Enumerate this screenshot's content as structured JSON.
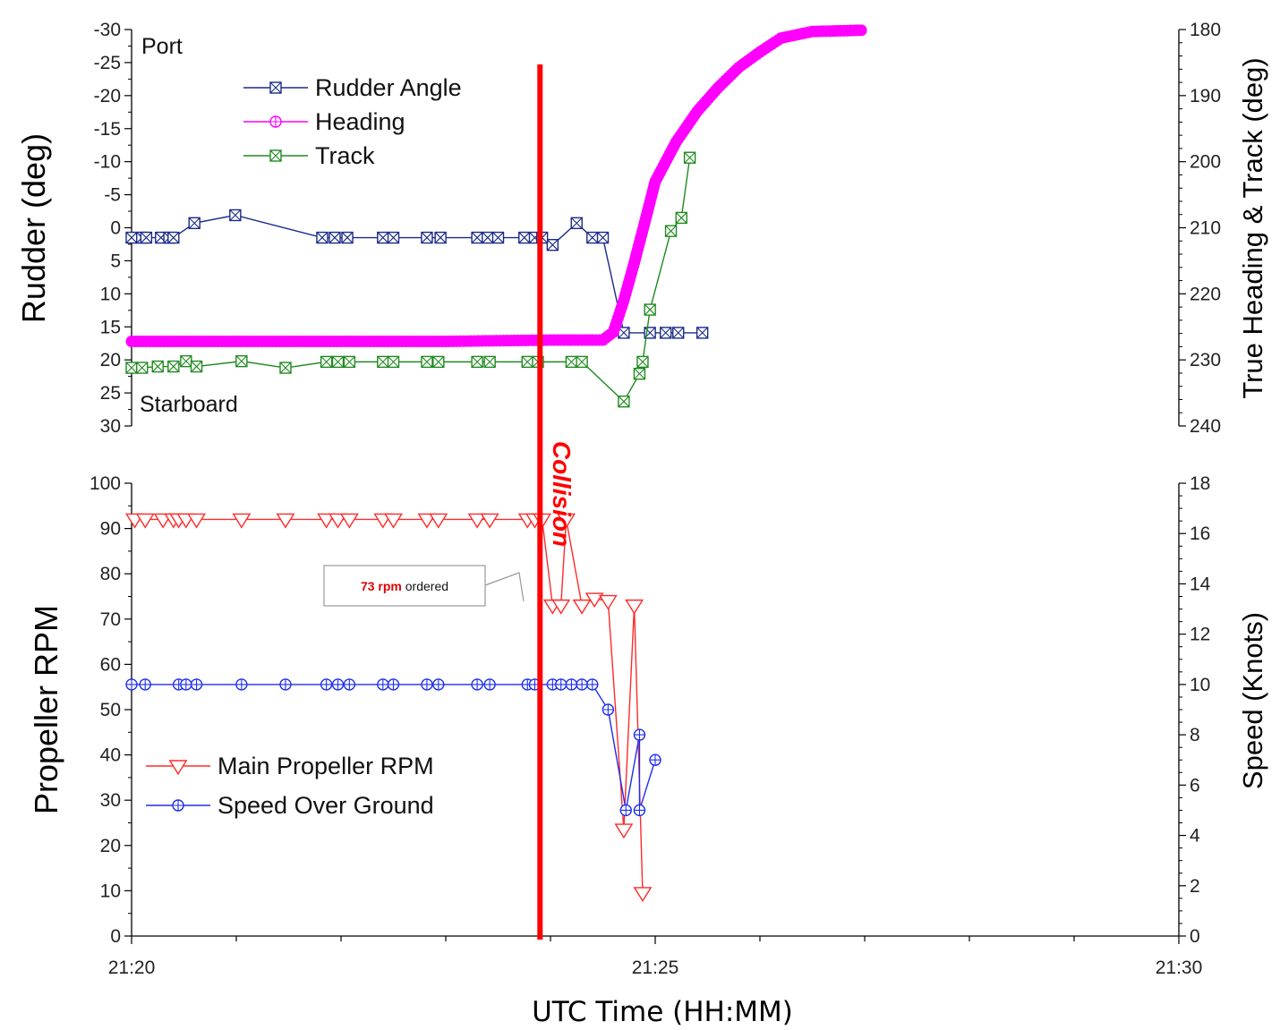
{
  "chart_data": [
    {
      "type": "line",
      "panel": "top",
      "ylabel_left": "Rudder (deg)",
      "ylabel_right": "True Heading & Track (deg)",
      "ylim_left": [
        -30,
        30
      ],
      "ylim_left_reversed": true,
      "yticks_left": [
        "-30",
        "-25",
        "-20",
        "-15",
        "-10",
        "-5",
        "0",
        "5",
        "10",
        "15",
        "20",
        "25",
        "30"
      ],
      "ylim_right": [
        180,
        240
      ],
      "ylim_right_reversed": true,
      "yticks_right": [
        "180",
        "190",
        "200",
        "210",
        "220",
        "230",
        "240"
      ],
      "annotations": {
        "top": "Port",
        "bottom": "Starboard"
      },
      "legend_position": "top-left",
      "series": [
        {
          "name": "Rudder Angle",
          "axis": "left",
          "color": "#1a2a8a",
          "marker": "square-x",
          "points": [
            [
              0.0,
              1.5
            ],
            [
              0.1,
              1.5
            ],
            [
              0.14,
              1.5
            ],
            [
              0.28,
              1.5
            ],
            [
              0.36,
              1.5
            ],
            [
              0.4,
              1.5
            ],
            [
              0.6,
              -0.7
            ],
            [
              0.99,
              -1.9
            ],
            [
              1.82,
              1.5
            ],
            [
              1.94,
              1.5
            ],
            [
              2.06,
              1.5
            ],
            [
              2.4,
              1.5
            ],
            [
              2.5,
              1.5
            ],
            [
              2.82,
              1.5
            ],
            [
              2.95,
              1.5
            ],
            [
              3.3,
              1.5
            ],
            [
              3.4,
              1.5
            ],
            [
              3.75,
              1.5
            ],
            [
              3.85,
              1.5
            ],
            [
              4.02,
              2.6
            ],
            [
              4.25,
              -0.7
            ],
            [
              3.5,
              1.5
            ],
            [
              3.92,
              1.5
            ],
            [
              4.4,
              1.5
            ],
            [
              4.5,
              1.5
            ],
            [
              4.7,
              15.9
            ],
            [
              4.95,
              15.9
            ],
            [
              5.1,
              15.9
            ],
            [
              5.22,
              15.9
            ],
            [
              5.45,
              15.9
            ]
          ]
        },
        {
          "name": "Heading",
          "axis": "right",
          "color": "#ff00ff",
          "marker": "circle-plus",
          "points": [
            [
              0.0,
              227.2
            ],
            [
              1.0,
              227.2
            ],
            [
              2.0,
              227.2
            ],
            [
              3.0,
              227.2
            ],
            [
              4.0,
              227.0
            ],
            [
              4.5,
              227.0
            ],
            [
              4.6,
              225.8
            ],
            [
              4.7,
              221.0
            ],
            [
              4.8,
              215.3
            ],
            [
              4.9,
              209.2
            ],
            [
              5.0,
              203.0
            ],
            [
              5.2,
              197.0
            ],
            [
              5.4,
              192.4
            ],
            [
              5.6,
              188.8
            ],
            [
              5.8,
              185.7
            ],
            [
              6.0,
              183.4
            ],
            [
              6.2,
              181.3
            ],
            [
              6.5,
              180.3
            ],
            [
              7.0,
              180.1
            ]
          ]
        },
        {
          "name": "Track",
          "axis": "right",
          "color": "#1f8a1f",
          "marker": "square-x",
          "points": [
            [
              0.0,
              231.2
            ],
            [
              0.1,
              231.2
            ],
            [
              0.25,
              231.0
            ],
            [
              0.4,
              231.0
            ],
            [
              0.52,
              230.2
            ],
            [
              0.62,
              231.0
            ],
            [
              1.05,
              230.2
            ],
            [
              1.47,
              231.2
            ],
            [
              1.86,
              230.3
            ],
            [
              1.97,
              230.3
            ],
            [
              2.08,
              230.3
            ],
            [
              2.4,
              230.3
            ],
            [
              2.5,
              230.3
            ],
            [
              2.82,
              230.3
            ],
            [
              2.93,
              230.3
            ],
            [
              3.3,
              230.3
            ],
            [
              3.42,
              230.3
            ],
            [
              3.78,
              230.3
            ],
            [
              3.88,
              230.3
            ],
            [
              4.2,
              230.3
            ],
            [
              4.3,
              230.3
            ],
            [
              4.7,
              236.3
            ],
            [
              4.85,
              232.1
            ],
            [
              4.88,
              230.3
            ],
            [
              4.95,
              222.4
            ],
            [
              5.15,
              210.5
            ],
            [
              5.25,
              208.5
            ],
            [
              5.33,
              199.4
            ]
          ]
        }
      ]
    },
    {
      "type": "line",
      "panel": "bottom",
      "ylabel_left": "Propeller RPM",
      "ylabel_right": "Speed (Knots)",
      "ylim_left": [
        0,
        100
      ],
      "yticks_left": [
        "0",
        "10",
        "20",
        "30",
        "40",
        "50",
        "60",
        "70",
        "80",
        "90",
        "100"
      ],
      "ylim_right": [
        0,
        18
      ],
      "yticks_right": [
        "0",
        "2",
        "4",
        "6",
        "8",
        "10",
        "12",
        "14",
        "16",
        "18"
      ],
      "xlabel": "UTC Time (HH:MM)",
      "x_range_minutes": [
        0,
        10
      ],
      "xticks": [
        "21:20",
        "21:25",
        "21:30"
      ],
      "legend_position": "bottom-left",
      "series": [
        {
          "name": "Main Propeller RPM",
          "axis": "left",
          "color": "#ff2a2a",
          "marker": "triangle-down",
          "points": [
            [
              0.03,
              92
            ],
            [
              0.13,
              92
            ],
            [
              0.3,
              92
            ],
            [
              0.4,
              92
            ],
            [
              0.45,
              92
            ],
            [
              0.52,
              92
            ],
            [
              0.62,
              92
            ],
            [
              1.05,
              92
            ],
            [
              1.47,
              92
            ],
            [
              1.86,
              92
            ],
            [
              1.97,
              92
            ],
            [
              2.08,
              92
            ],
            [
              2.4,
              92
            ],
            [
              2.5,
              92
            ],
            [
              2.82,
              92
            ],
            [
              2.93,
              92
            ],
            [
              3.3,
              92
            ],
            [
              3.42,
              92
            ],
            [
              3.78,
              92
            ],
            [
              3.85,
              92
            ],
            [
              3.92,
              92
            ],
            [
              4.15,
              92
            ],
            [
              4.02,
              73
            ],
            [
              4.1,
              73
            ],
            [
              4.3,
              73
            ],
            [
              4.42,
              74.5
            ],
            [
              4.55,
              74
            ],
            [
              4.8,
              73
            ],
            [
              4.7,
              23.5
            ],
            [
              4.88,
              9.5
            ]
          ]
        },
        {
          "name": "Speed Over Ground",
          "axis": "right",
          "color": "#1e2ef0",
          "marker": "circle-plus",
          "points": [
            [
              0.0,
              10.0
            ],
            [
              0.13,
              10.0
            ],
            [
              0.45,
              10.0
            ],
            [
              0.52,
              10.0
            ],
            [
              0.62,
              10.0
            ],
            [
              1.05,
              10.0
            ],
            [
              1.47,
              10.0
            ],
            [
              1.86,
              10.0
            ],
            [
              1.97,
              10.0
            ],
            [
              2.08,
              10.0
            ],
            [
              2.4,
              10.0
            ],
            [
              2.5,
              10.0
            ],
            [
              2.82,
              10.0
            ],
            [
              2.93,
              10.0
            ],
            [
              3.3,
              10.0
            ],
            [
              3.42,
              10.0
            ],
            [
              3.78,
              10.0
            ],
            [
              3.85,
              10.0
            ],
            [
              4.02,
              10.0
            ],
            [
              4.1,
              10.0
            ],
            [
              4.2,
              10.0
            ],
            [
              4.3,
              10.0
            ],
            [
              4.4,
              10.0
            ],
            [
              4.55,
              9.0
            ],
            [
              4.85,
              8.0
            ],
            [
              5.0,
              7.0
            ],
            [
              4.72,
              5.0
            ],
            [
              4.85,
              5.0
            ]
          ]
        }
      ]
    }
  ],
  "annotations": {
    "event_line": {
      "label": "Collision",
      "x_minutes": 3.9,
      "color": "#ff0000"
    },
    "callout": {
      "highlight": "73 rpm",
      "text": " ordered"
    }
  }
}
